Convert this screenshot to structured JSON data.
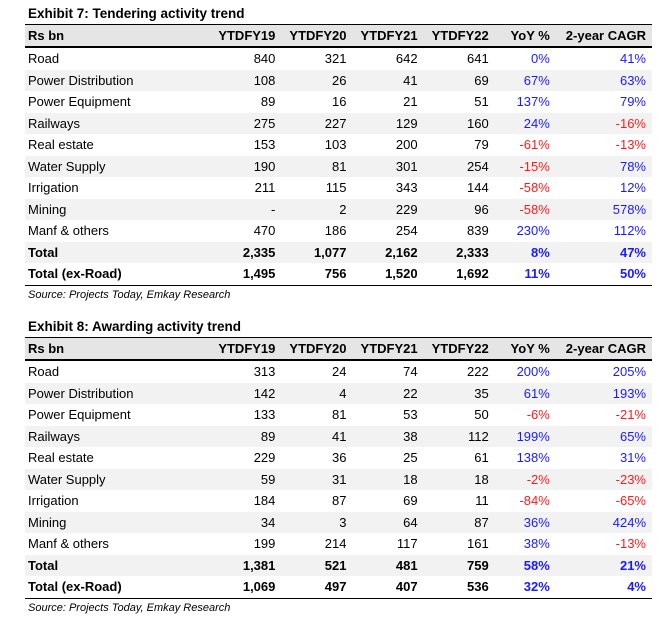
{
  "colors": {
    "positive": "#1a1aff",
    "negative": "#ff1a1a",
    "header_bg": "#e5e5e5",
    "alt_row_bg": "#f2f2f2"
  },
  "exhibits": [
    {
      "title": "Exhibit 7: Tendering activity trend",
      "headers": [
        "Rs bn",
        "YTDFY19",
        "YTDFY20",
        "YTDFY21",
        "YTDFY22",
        "YoY %",
        "2-year CAGR"
      ],
      "rows": [
        [
          "Road",
          "840",
          "321",
          "642",
          "641",
          "0%",
          "41%"
        ],
        [
          "Power Distribution",
          "108",
          "26",
          "41",
          "69",
          "67%",
          "63%"
        ],
        [
          "Power Equipment",
          "89",
          "16",
          "21",
          "51",
          "137%",
          "79%"
        ],
        [
          "Railways",
          "275",
          "227",
          "129",
          "160",
          "24%",
          "-16%"
        ],
        [
          "Real estate",
          "153",
          "103",
          "200",
          "79",
          "-61%",
          "-13%"
        ],
        [
          "Water Supply",
          "190",
          "81",
          "301",
          "254",
          "-15%",
          "78%"
        ],
        [
          "Irrigation",
          "211",
          "115",
          "343",
          "144",
          "-58%",
          "12%"
        ],
        [
          "Mining",
          "-",
          "2",
          "229",
          "96",
          "-58%",
          "578%"
        ],
        [
          "Manf & others",
          "470",
          "186",
          "254",
          "839",
          "230%",
          "112%"
        ],
        [
          "Total",
          "2,335",
          "1,077",
          "2,162",
          "2,333",
          "8%",
          "47%"
        ],
        [
          "Total (ex-Road)",
          "1,495",
          "756",
          "1,520",
          "1,692",
          "11%",
          "50%"
        ]
      ],
      "source": "Source: Projects Today, Emkay Research"
    },
    {
      "title": "Exhibit 8: Awarding activity trend",
      "headers": [
        "Rs bn",
        "YTDFY19",
        "YTDFY20",
        "YTDFY21",
        "YTDFY22",
        "YoY %",
        "2-year CAGR"
      ],
      "rows": [
        [
          "Road",
          "313",
          "24",
          "74",
          "222",
          "200%",
          "205%"
        ],
        [
          "Power Distribution",
          "142",
          "4",
          "22",
          "35",
          "61%",
          "193%"
        ],
        [
          "Power Equipment",
          "133",
          "81",
          "53",
          "50",
          "-6%",
          "-21%"
        ],
        [
          "Railways",
          "89",
          "41",
          "38",
          "112",
          "199%",
          "65%"
        ],
        [
          "Real estate",
          "229",
          "36",
          "25",
          "61",
          "138%",
          "31%"
        ],
        [
          "Water Supply",
          "59",
          "31",
          "18",
          "18",
          "-2%",
          "-23%"
        ],
        [
          "Irrigation",
          "184",
          "87",
          "69",
          "11",
          "-84%",
          "-65%"
        ],
        [
          "Mining",
          "34",
          "3",
          "64",
          "87",
          "36%",
          "424%"
        ],
        [
          "Manf & others",
          "199",
          "214",
          "117",
          "161",
          "38%",
          "-13%"
        ],
        [
          "Total",
          "1,381",
          "521",
          "481",
          "759",
          "58%",
          "21%"
        ],
        [
          "Total (ex-Road)",
          "1,069",
          "497",
          "407",
          "536",
          "32%",
          "4%"
        ]
      ],
      "source": "Source: Projects Today, Emkay Research"
    }
  ]
}
